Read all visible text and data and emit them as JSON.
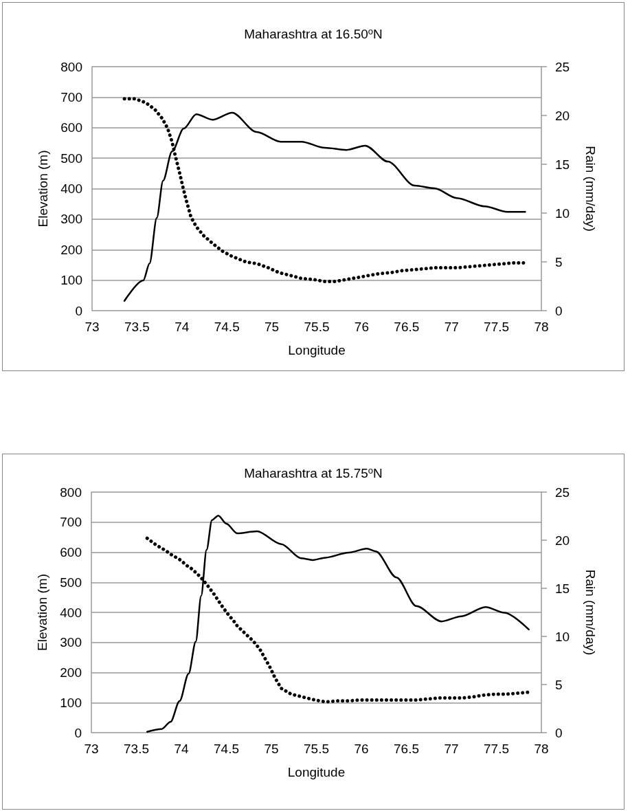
{
  "chart_data": [
    {
      "type": "line",
      "title": "Maharashtra at 16.50$^{o}$N",
      "xlabel": "Longitude",
      "ylabel": "Elevation (m)",
      "y2label": "Rain (mm/day)",
      "xlim": [
        73,
        78
      ],
      "xticks": [
        73,
        73.5,
        74,
        74.5,
        75,
        75.5,
        76,
        76.5,
        77,
        77.5,
        78
      ],
      "ylim": [
        0,
        800
      ],
      "yticks": [
        0,
        100,
        200,
        300,
        400,
        500,
        600,
        700,
        800
      ],
      "y2lim": [
        0,
        25
      ],
      "y2ticks": [
        0,
        5,
        10,
        15,
        20,
        25
      ],
      "grid": "y",
      "marker": "none",
      "series": [
        {
          "color": "#000000",
          "line_style": "solid",
          "x": [
            73.36,
            73.57,
            73.64,
            73.72,
            73.79,
            73.89,
            74.02,
            74.16,
            74.34,
            74.56,
            74.83,
            75.1,
            75.33,
            75.59,
            75.83,
            76.04,
            76.29,
            76.59,
            76.81,
            77.06,
            77.37,
            77.62,
            77.82
          ],
          "values": [
            32,
            99,
            155,
            304,
            426,
            522,
            597,
            644,
            626,
            649,
            586,
            554,
            554,
            534,
            527,
            541,
            489,
            410,
            401,
            369,
            342,
            324,
            324
          ]
        },
        {
          "color": "#000000",
          "line_style": "dotted",
          "axis": "y2",
          "x": [
            73.36,
            73.48,
            73.6,
            73.7,
            73.78,
            73.84,
            73.89,
            73.92,
            73.95,
            73.98,
            74.01,
            74.04,
            74.07,
            74.1,
            74.16,
            74.24,
            74.34,
            74.45,
            74.55,
            74.71,
            74.84,
            74.96,
            75.08,
            75.21,
            75.33,
            75.46,
            75.58,
            75.71,
            75.83,
            75.96,
            76.08,
            76.2,
            76.33,
            76.45,
            76.58,
            76.7,
            76.82,
            76.95,
            77.07,
            77.19,
            77.32,
            77.44,
            77.57,
            77.69,
            77.81
          ],
          "values": [
            21.7,
            21.7,
            21.3,
            20.6,
            19.7,
            18.7,
            17.3,
            16.1,
            15,
            13.9,
            12.7,
            11.6,
            10.6,
            9.6,
            8.6,
            7.7,
            6.9,
            6.1,
            5.6,
            5,
            4.8,
            4.4,
            3.9,
            3.6,
            3.3,
            3.2,
            3,
            3,
            3.2,
            3.4,
            3.6,
            3.8,
            3.9,
            4.1,
            4.2,
            4.3,
            4.4,
            4.4,
            4.4,
            4.5,
            4.6,
            4.7,
            4.8,
            4.9,
            4.9
          ]
        }
      ]
    },
    {
      "type": "line",
      "title": "Maharashtra at 15.75$^{o}$N",
      "xlabel": "Longitude",
      "ylabel": "Elevation (m)",
      "y2label": "Rain (mm/day)",
      "xlim": [
        73,
        78
      ],
      "xticks": [
        73,
        73.5,
        74,
        74.5,
        75,
        75.5,
        76,
        76.5,
        77,
        77.5,
        78
      ],
      "ylim": [
        0,
        800
      ],
      "yticks": [
        0,
        100,
        200,
        300,
        400,
        500,
        600,
        700,
        800
      ],
      "y2lim": [
        0,
        25
      ],
      "y2ticks": [
        0,
        5,
        10,
        15,
        20,
        25
      ],
      "grid": "y",
      "marker": "none",
      "series": [
        {
          "color": "#000000",
          "line_style": "solid",
          "x": [
            73.62,
            73.78,
            73.88,
            73.98,
            74.08,
            74.16,
            74.22,
            74.28,
            74.34,
            74.41,
            74.5,
            74.62,
            74.84,
            75.11,
            75.33,
            75.46,
            75.6,
            75.86,
            76.06,
            76.16,
            76.39,
            76.61,
            76.89,
            77.11,
            77.38,
            77.59,
            77.86
          ],
          "values": [
            3,
            12,
            36,
            105,
            196,
            303,
            455,
            608,
            707,
            722,
            695,
            663,
            670,
            627,
            580,
            574,
            582,
            599,
            612,
            603,
            516,
            421,
            370,
            387,
            418,
            399,
            343
          ]
        },
        {
          "color": "#000000",
          "line_style": "dotted",
          "axis": "y2",
          "x": [
            73.62,
            73.72,
            73.83,
            73.87,
            73.98,
            74.07,
            74.12,
            74.21,
            74.29,
            74.37,
            74.44,
            74.51,
            74.59,
            74.62,
            74.71,
            74.8,
            74.87,
            74.93,
            74.99,
            75.04,
            75.11,
            75.22,
            75.35,
            75.48,
            75.6,
            75.74,
            75.86,
            75.99,
            76.12,
            76.24,
            76.37,
            76.49,
            76.62,
            76.74,
            76.86,
            76.99,
            77.11,
            77.23,
            77.36,
            77.48,
            77.61,
            77.73,
            77.86
          ],
          "values": [
            20.2,
            19.5,
            18.9,
            18.6,
            18,
            17.3,
            17,
            16.2,
            15.3,
            14.3,
            13.3,
            12.4,
            11.5,
            11.1,
            10.3,
            9.5,
            8.7,
            7.7,
            6.7,
            5.7,
            4.6,
            4,
            3.7,
            3.4,
            3.2,
            3.3,
            3.3,
            3.4,
            3.4,
            3.4,
            3.4,
            3.4,
            3.4,
            3.5,
            3.6,
            3.6,
            3.6,
            3.7,
            3.9,
            4,
            4,
            4.1,
            4.2
          ]
        }
      ]
    }
  ]
}
